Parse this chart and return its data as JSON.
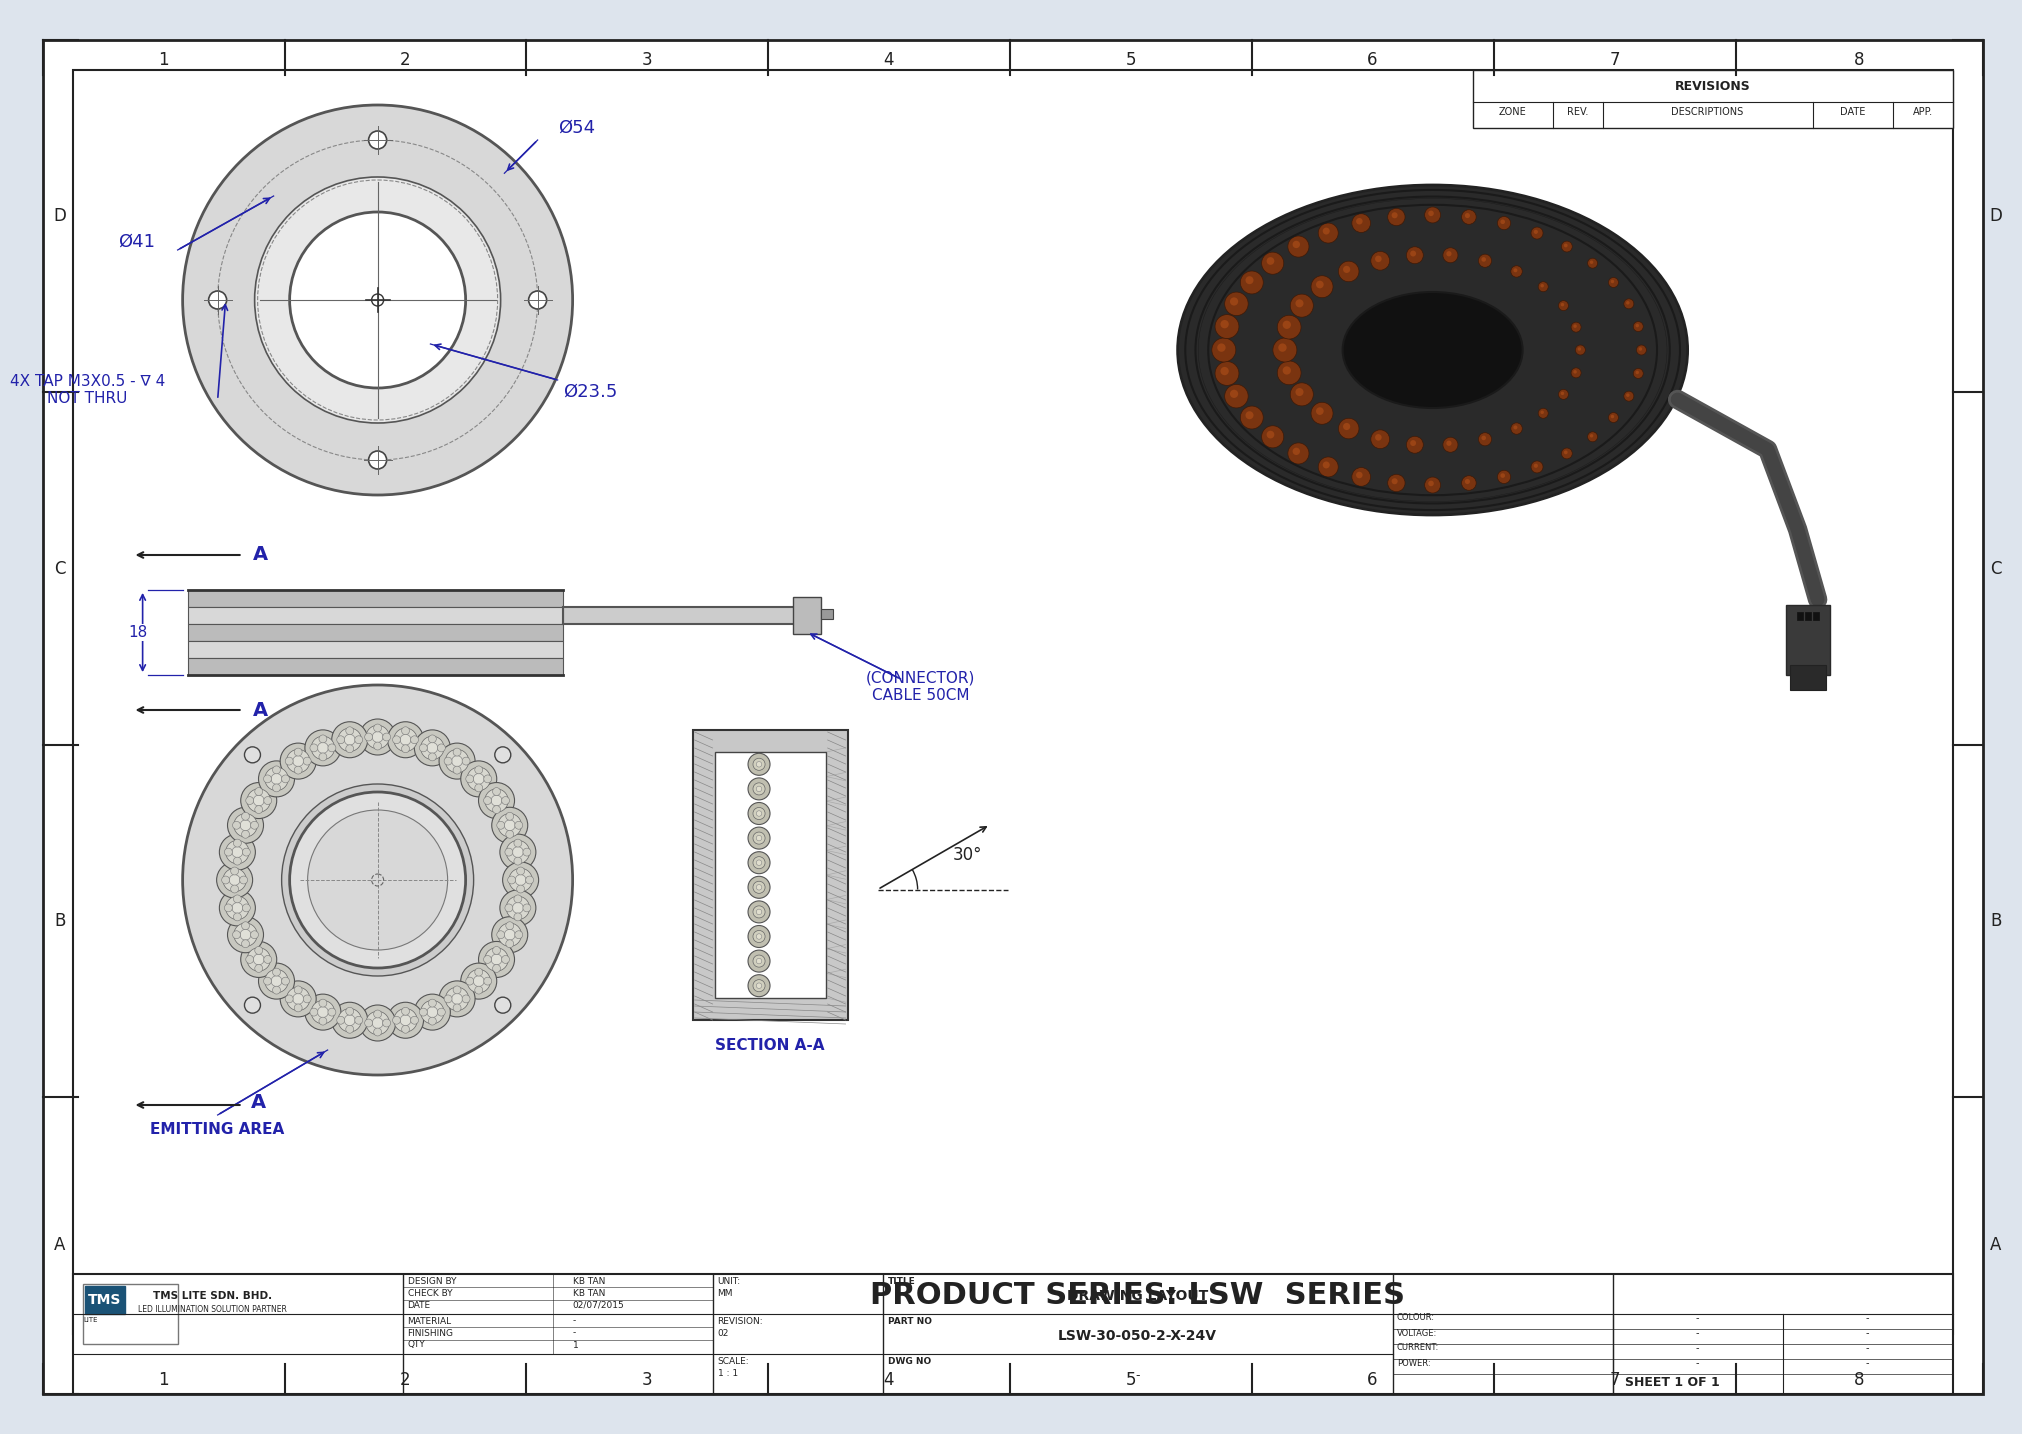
{
  "bg_color": "#dde4ed",
  "white": "#ffffff",
  "border_color": "#222222",
  "line_color": "#555555",
  "blue_dim_color": "#2222aa",
  "dark_gray": "#333333",
  "mid_gray": "#888888",
  "light_gray": "#cccccc",
  "very_light_gray": "#e8e8e8",
  "body_gray": "#bbbbbb",
  "fin_dark": "#aaaaaa",
  "fin_light": "#dddddd",
  "led_brown": "#8B4513",
  "led_dark_brown": "#5a2d0c",
  "connector_dark": "#444444",
  "product_series": "PRODUCT SERIES: LSW  SERIES",
  "title_text": "DRAWING LAYOUT",
  "part_no": "LSW-30-050-2-X-24V",
  "design_by": "KB TAN",
  "check_by": "KB TAN",
  "date": "02/07/2015",
  "revision": "02",
  "scale": "1 : 1",
  "unit": "MM",
  "company_name": "TMS LITE SDN. BHD.",
  "company_sub": "LED ILLUMINATION SOLUTION PARTNER",
  "col_labels": [
    "1",
    "2",
    "3",
    "4",
    "5",
    "6",
    "7",
    "8"
  ],
  "row_labels_tb": [
    "D",
    "C",
    "B",
    "A"
  ],
  "dim_54": "Ø54",
  "dim_41": "Ø41",
  "dim_23_5": "Ø23.5",
  "dim_18": "18",
  "tap_text": "4X TAP M3X0.5 - ∇ 4\nNOT THRU",
  "connector_text": "(CONNECTOR)\nCABLE 50CM",
  "emitting_text": "EMITTING AREA",
  "section_text": "SECTION A-A",
  "angle_30": "30°",
  "colour_lbl": "COLOUR:",
  "voltage_lbl": "VOLTAGE:",
  "current_lbl": "CURRENT:",
  "power_lbl": "POWER:"
}
